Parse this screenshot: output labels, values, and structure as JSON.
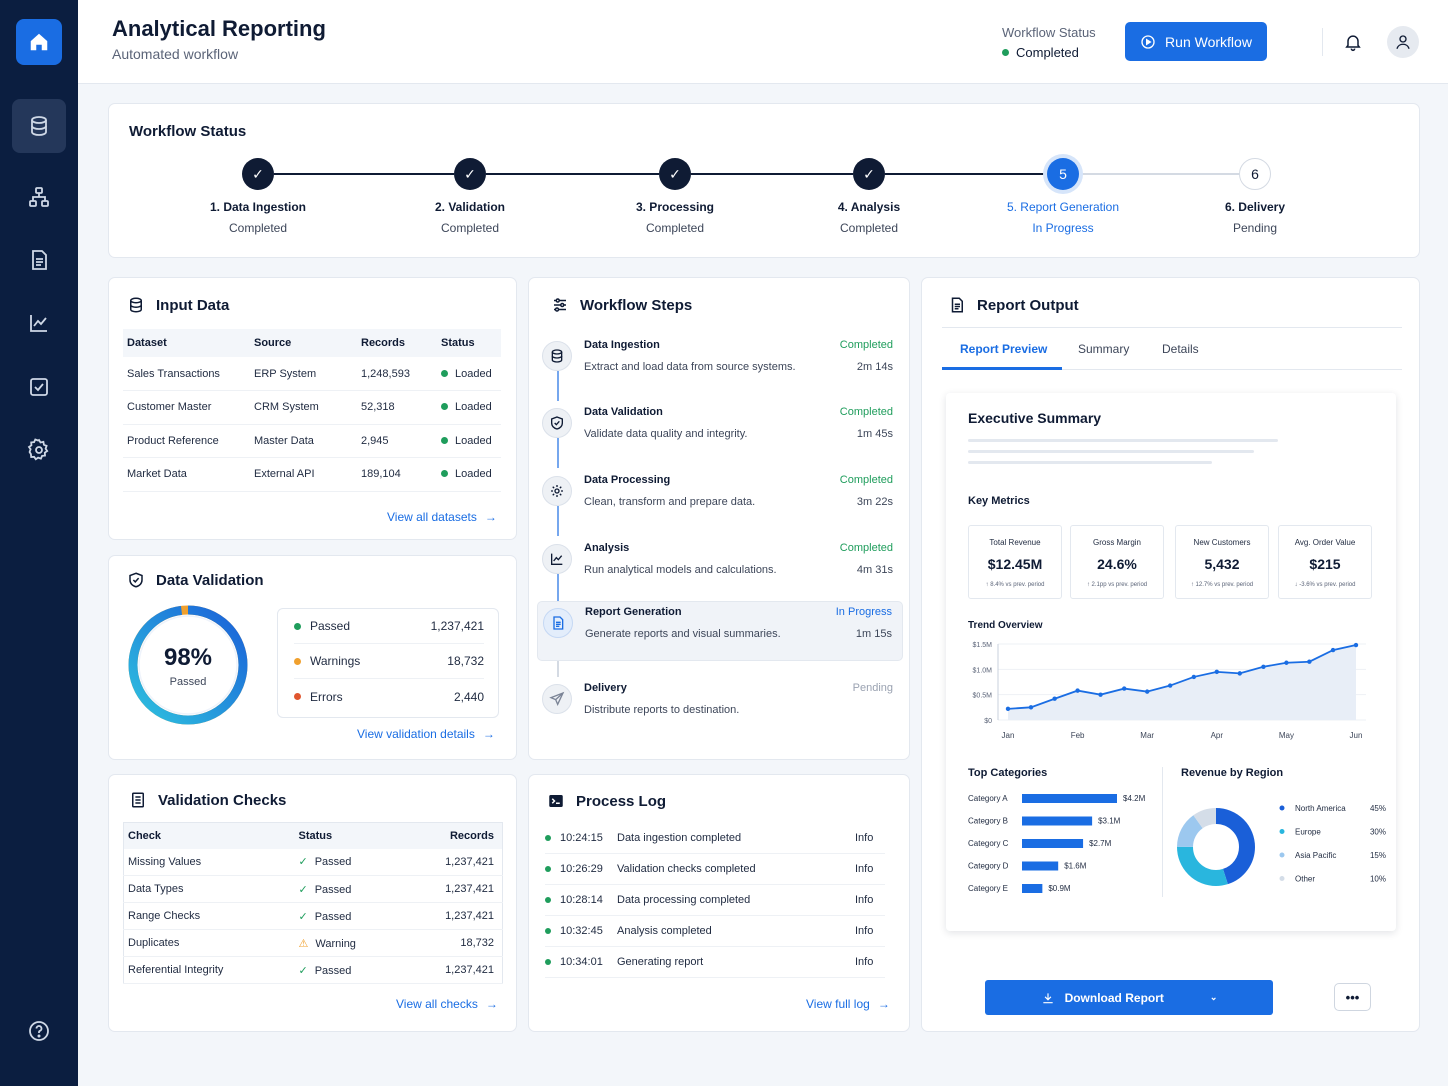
{
  "header": {
    "title": "Analytical Reporting",
    "subtitle": "Automated workflow",
    "status_label": "Workflow Status",
    "status_value": "Completed",
    "run_label": "Run Workflow"
  },
  "workflow_status": {
    "title": "Workflow Status",
    "steps": [
      {
        "name": "1. Data Ingestion",
        "state": "Completed",
        "marker": "✓"
      },
      {
        "name": "2. Validation",
        "state": "Completed",
        "marker": "✓"
      },
      {
        "name": "3. Processing",
        "state": "Completed",
        "marker": "✓"
      },
      {
        "name": "4. Analysis",
        "state": "Completed",
        "marker": "✓"
      },
      {
        "name": "5. Report Generation",
        "state": "In Progress",
        "marker": "5"
      },
      {
        "name": "6. Delivery",
        "state": "Pending",
        "marker": "6"
      }
    ]
  },
  "input_data": {
    "title": "Input Data",
    "columns": [
      "Dataset",
      "Source",
      "Records",
      "Status"
    ],
    "rows": [
      {
        "dataset": "Sales Transactions",
        "source": "ERP System",
        "records": "1,248,593",
        "status": "Loaded"
      },
      {
        "dataset": "Customer Master",
        "source": "CRM System",
        "records": "52,318",
        "status": "Loaded"
      },
      {
        "dataset": "Product Reference",
        "source": "Master Data",
        "records": "2,945",
        "status": "Loaded"
      },
      {
        "dataset": "Market Data",
        "source": "External API",
        "records": "189,104",
        "status": "Loaded"
      }
    ],
    "link": "View all datasets"
  },
  "data_validation": {
    "title": "Data Validation",
    "percent": "98%",
    "percent_label": "Passed",
    "pass_fraction": 0.98,
    "items": [
      {
        "label": "Passed",
        "value": "1,237,421",
        "color": "#1f9d5c"
      },
      {
        "label": "Warnings",
        "value": "18,732",
        "color": "#f0a02e"
      },
      {
        "label": "Errors",
        "value": "2,440",
        "color": "#e0562f"
      }
    ],
    "link": "View validation details"
  },
  "validation_checks": {
    "title": "Validation Checks",
    "columns": [
      "Check",
      "Status",
      "Records"
    ],
    "rows": [
      {
        "check": "Missing Values",
        "status": "Passed",
        "records": "1,237,421",
        "kind": "ok"
      },
      {
        "check": "Data Types",
        "status": "Passed",
        "records": "1,237,421",
        "kind": "ok"
      },
      {
        "check": "Range Checks",
        "status": "Passed",
        "records": "1,237,421",
        "kind": "ok"
      },
      {
        "check": "Duplicates",
        "status": "Warning",
        "records": "18,732",
        "kind": "warn"
      },
      {
        "check": "Referential Integrity",
        "status": "Passed",
        "records": "1,237,421",
        "kind": "ok"
      }
    ],
    "link": "View all checks"
  },
  "workflow_steps": {
    "title": "Workflow Steps",
    "steps": [
      {
        "name": "Data Ingestion",
        "desc": "Extract and load data from source systems.",
        "status": "Completed",
        "time": "2m 14s"
      },
      {
        "name": "Data Validation",
        "desc": "Validate data quality and integrity.",
        "status": "Completed",
        "time": "1m 45s"
      },
      {
        "name": "Data Processing",
        "desc": "Clean, transform and prepare data.",
        "status": "Completed",
        "time": "3m 22s"
      },
      {
        "name": "Analysis",
        "desc": "Run analytical models and calculations.",
        "status": "Completed",
        "time": "4m 31s"
      },
      {
        "name": "Report Generation",
        "desc": "Generate reports and visual summaries.",
        "status": "In Progress",
        "time": "1m 15s"
      },
      {
        "name": "Delivery",
        "desc": "Distribute reports to destination.",
        "status": "Pending",
        "time": ""
      }
    ]
  },
  "process_log": {
    "title": "Process Log",
    "rows": [
      {
        "time": "10:24:15",
        "msg": "Data ingestion completed",
        "level": "Info"
      },
      {
        "time": "10:26:29",
        "msg": "Validation checks completed",
        "level": "Info"
      },
      {
        "time": "10:28:14",
        "msg": "Data processing completed",
        "level": "Info"
      },
      {
        "time": "10:32:45",
        "msg": "Analysis completed",
        "level": "Info"
      },
      {
        "time": "10:34:01",
        "msg": "Generating report",
        "level": "Info"
      }
    ],
    "link": "View full log"
  },
  "report_output": {
    "title": "Report Output",
    "tabs": [
      "Report Preview",
      "Summary",
      "Details"
    ],
    "preview": {
      "heading": "Executive Summary",
      "metrics_title": "Key Metrics",
      "metrics": [
        {
          "label": "Total Revenue",
          "value": "$12.45M",
          "delta": "↑ 8.4% vs prev. period",
          "up": true
        },
        {
          "label": "Gross Margin",
          "value": "24.6%",
          "delta": "↑ 2.1pp vs prev. period",
          "up": true
        },
        {
          "label": "New Customers",
          "value": "5,432",
          "delta": "↑ 12.7% vs prev. period",
          "up": true
        },
        {
          "label": "Avg. Order Value",
          "value": "$215",
          "delta": "↓ -3.6% vs prev. period",
          "up": false
        }
      ],
      "trend_title": "Trend Overview",
      "categories_title": "Top Categories",
      "region_title": "Revenue by Region"
    },
    "download_label": "Download Report",
    "more_label": "•••"
  },
  "chart_data": [
    {
      "type": "line",
      "title": "Trend Overview",
      "x_ticks": [
        "Jan",
        "Feb",
        "Mar",
        "Apr",
        "May",
        "Jun"
      ],
      "y_ticks": [
        "$0",
        "$0.5M",
        "$1.0M",
        "$1.5M"
      ],
      "ylim": [
        0,
        1.5
      ],
      "y_unit": "$M",
      "x": [
        0,
        0.33,
        0.67,
        1,
        1.33,
        1.67,
        2,
        2.33,
        2.67,
        3,
        3.33,
        3.67,
        4,
        4.33,
        4.67,
        5
      ],
      "values": [
        0.22,
        0.25,
        0.42,
        0.58,
        0.5,
        0.62,
        0.56,
        0.68,
        0.85,
        0.95,
        0.92,
        1.05,
        1.13,
        1.15,
        1.38,
        1.48
      ],
      "color": "#1a6de3"
    },
    {
      "type": "bar",
      "title": "Top Categories",
      "categories": [
        "Category A",
        "Category B",
        "Category C",
        "Category D",
        "Category E"
      ],
      "values": [
        4.2,
        3.1,
        2.7,
        1.6,
        0.9
      ],
      "labels": [
        "$4.2M",
        "$3.1M",
        "$2.7M",
        "$1.6M",
        "$0.9M"
      ],
      "color": "#1a6de3"
    },
    {
      "type": "pie",
      "title": "Revenue by Region",
      "categories": [
        "North America",
        "Europe",
        "Asia Pacific",
        "Other"
      ],
      "values": [
        45,
        30,
        15,
        10
      ],
      "labels": [
        "45%",
        "30%",
        "15%",
        "10%"
      ],
      "colors": [
        "#1a5fd8",
        "#29b6de",
        "#9cc8ef",
        "#d4dde8"
      ]
    }
  ],
  "colors": {
    "accent": "#1a6de3",
    "sidebar": "#0b1e40",
    "success": "#1f9d5c",
    "warning": "#f0a02e",
    "error": "#e0562f"
  }
}
